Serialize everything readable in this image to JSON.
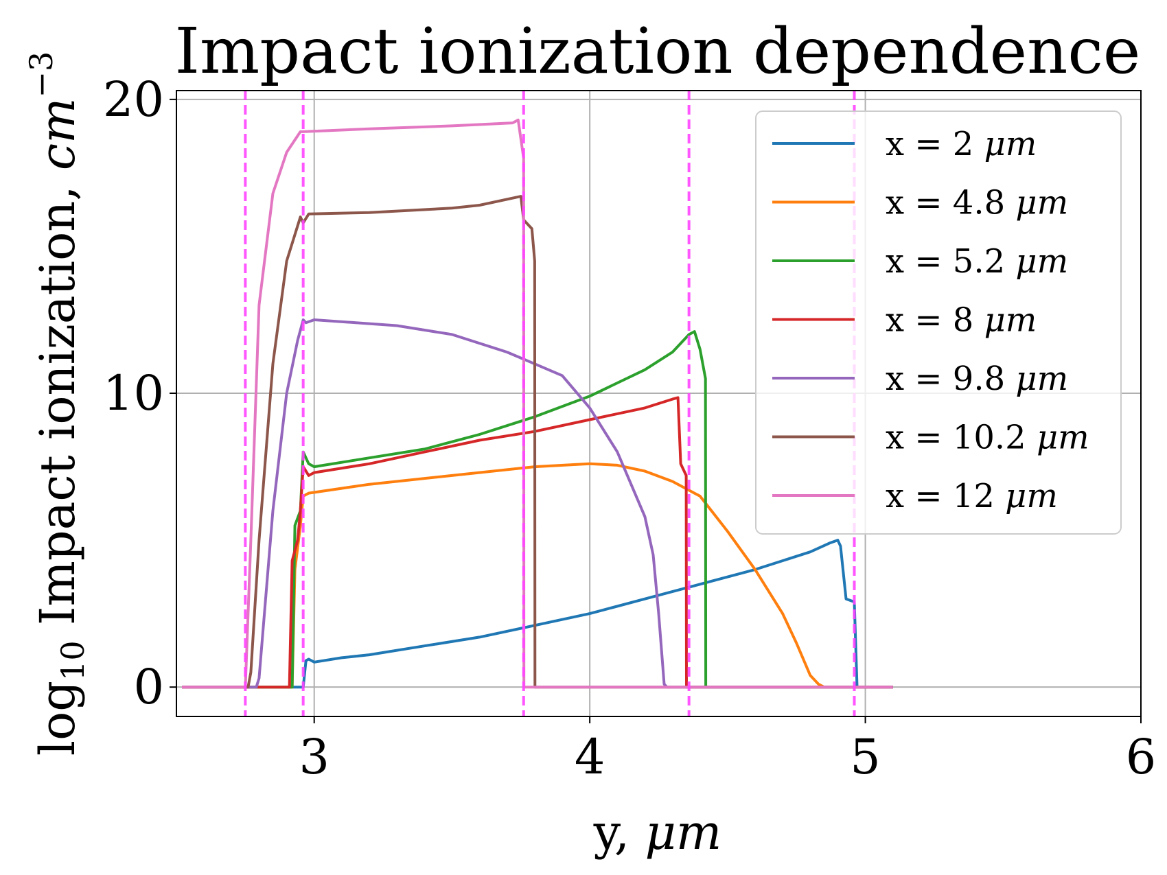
{
  "chart_data": {
    "type": "line",
    "title": "Impact ionization dependence",
    "xlabel": {
      "text": "y, ",
      "unit": "μm"
    },
    "ylabel": {
      "prefix": "log",
      "sub": "10",
      "text": " Impact ionization, ",
      "unit": "cm",
      "sup": "−3"
    },
    "xlim": [
      2.5,
      6
    ],
    "ylim": [
      -1,
      20.3
    ],
    "xticks": [
      3,
      4,
      5,
      6
    ],
    "xtick_labels": [
      "3",
      "4",
      "5",
      "6"
    ],
    "yticks": [
      0,
      10,
      20
    ],
    "ytick_labels": [
      "0",
      "10",
      "20"
    ],
    "grid": true,
    "legend_position": "top-right",
    "vlines": {
      "x": [
        2.75,
        2.96,
        3.76,
        4.36,
        4.96
      ],
      "color": "#ff44ff",
      "style": "dashed"
    },
    "series": [
      {
        "name": "x = 2 ",
        "unit": "μm",
        "color": "#1f77b4",
        "points": [
          [
            2.52,
            0
          ],
          [
            2.96,
            0
          ],
          [
            2.97,
            0.9
          ],
          [
            2.98,
            0.95
          ],
          [
            3.0,
            0.85
          ],
          [
            3.1,
            1.0
          ],
          [
            3.2,
            1.1
          ],
          [
            3.4,
            1.4
          ],
          [
            3.6,
            1.7
          ],
          [
            3.8,
            2.1
          ],
          [
            4.0,
            2.5
          ],
          [
            4.2,
            3.0
          ],
          [
            4.4,
            3.5
          ],
          [
            4.6,
            4.0
          ],
          [
            4.8,
            4.6
          ],
          [
            4.87,
            4.9
          ],
          [
            4.9,
            5.0
          ],
          [
            4.91,
            4.8
          ],
          [
            4.93,
            3.0
          ],
          [
            4.96,
            2.9
          ],
          [
            4.97,
            0
          ],
          [
            5.1,
            0
          ]
        ]
      },
      {
        "name": "x = 4.8 ",
        "unit": "μm",
        "color": "#ff7f0e",
        "points": [
          [
            2.52,
            0
          ],
          [
            2.92,
            0
          ],
          [
            2.93,
            4.0
          ],
          [
            2.95,
            5.5
          ],
          [
            2.96,
            6.5
          ],
          [
            2.98,
            6.6
          ],
          [
            3.2,
            6.9
          ],
          [
            3.5,
            7.2
          ],
          [
            3.8,
            7.5
          ],
          [
            4.0,
            7.6
          ],
          [
            4.1,
            7.55
          ],
          [
            4.2,
            7.35
          ],
          [
            4.3,
            7.0
          ],
          [
            4.4,
            6.5
          ],
          [
            4.5,
            5.3
          ],
          [
            4.6,
            4.0
          ],
          [
            4.7,
            2.5
          ],
          [
            4.75,
            1.5
          ],
          [
            4.8,
            0.4
          ],
          [
            4.83,
            0.1
          ],
          [
            4.85,
            0
          ],
          [
            5.1,
            0
          ]
        ]
      },
      {
        "name": "x = 5.2 ",
        "unit": "μm",
        "color": "#2ca02c",
        "points": [
          [
            2.52,
            0
          ],
          [
            2.92,
            0
          ],
          [
            2.93,
            5.5
          ],
          [
            2.95,
            6.0
          ],
          [
            2.96,
            8.0
          ],
          [
            2.98,
            7.6
          ],
          [
            3.0,
            7.5
          ],
          [
            3.2,
            7.8
          ],
          [
            3.4,
            8.1
          ],
          [
            3.6,
            8.6
          ],
          [
            3.8,
            9.2
          ],
          [
            4.0,
            9.9
          ],
          [
            4.2,
            10.8
          ],
          [
            4.3,
            11.4
          ],
          [
            4.36,
            12.0
          ],
          [
            4.38,
            12.1
          ],
          [
            4.4,
            11.5
          ],
          [
            4.42,
            10.5
          ],
          [
            4.421,
            0
          ],
          [
            5.1,
            0
          ]
        ]
      },
      {
        "name": "x = 8 ",
        "unit": "μm",
        "color": "#d62728",
        "points": [
          [
            2.52,
            0
          ],
          [
            2.91,
            0
          ],
          [
            2.92,
            4.3
          ],
          [
            2.94,
            5.0
          ],
          [
            2.95,
            6.0
          ],
          [
            2.96,
            7.5
          ],
          [
            2.98,
            7.2
          ],
          [
            3.0,
            7.3
          ],
          [
            3.2,
            7.6
          ],
          [
            3.4,
            8.0
          ],
          [
            3.6,
            8.4
          ],
          [
            3.8,
            8.7
          ],
          [
            4.0,
            9.1
          ],
          [
            4.2,
            9.5
          ],
          [
            4.3,
            9.8
          ],
          [
            4.32,
            9.85
          ],
          [
            4.33,
            7.6
          ],
          [
            4.35,
            7.2
          ],
          [
            4.351,
            0
          ],
          [
            5.1,
            0
          ]
        ]
      },
      {
        "name": "x = 9.8 ",
        "unit": "μm",
        "color": "#9467bd",
        "points": [
          [
            2.52,
            0
          ],
          [
            2.79,
            0
          ],
          [
            2.8,
            0.3
          ],
          [
            2.85,
            6.0
          ],
          [
            2.9,
            10.0
          ],
          [
            2.94,
            11.8
          ],
          [
            2.96,
            12.5
          ],
          [
            2.97,
            12.4
          ],
          [
            3.0,
            12.5
          ],
          [
            3.3,
            12.3
          ],
          [
            3.5,
            12.0
          ],
          [
            3.7,
            11.4
          ],
          [
            3.8,
            11.0
          ],
          [
            3.9,
            10.6
          ],
          [
            4.0,
            9.5
          ],
          [
            4.1,
            8.0
          ],
          [
            4.2,
            5.8
          ],
          [
            4.23,
            4.5
          ],
          [
            4.25,
            2.5
          ],
          [
            4.27,
            0.1
          ],
          [
            4.28,
            0
          ],
          [
            5.1,
            0
          ]
        ]
      },
      {
        "name": "x = 10.2 ",
        "unit": "μm",
        "color": "#8c564b",
        "points": [
          [
            2.52,
            0
          ],
          [
            2.76,
            0
          ],
          [
            2.77,
            0.5
          ],
          [
            2.8,
            5.0
          ],
          [
            2.85,
            11.0
          ],
          [
            2.9,
            14.5
          ],
          [
            2.95,
            16.0
          ],
          [
            2.96,
            15.8
          ],
          [
            2.98,
            16.1
          ],
          [
            3.2,
            16.15
          ],
          [
            3.5,
            16.3
          ],
          [
            3.6,
            16.4
          ],
          [
            3.75,
            16.7
          ],
          [
            3.76,
            15.9
          ],
          [
            3.79,
            15.6
          ],
          [
            3.8,
            14.5
          ],
          [
            3.801,
            0
          ],
          [
            5.1,
            0
          ]
        ]
      },
      {
        "name": "x = 12 ",
        "unit": "μm",
        "color": "#e377c2",
        "points": [
          [
            2.52,
            0
          ],
          [
            2.75,
            0
          ],
          [
            2.77,
            5.0
          ],
          [
            2.8,
            13.0
          ],
          [
            2.85,
            16.8
          ],
          [
            2.9,
            18.2
          ],
          [
            2.95,
            18.9
          ],
          [
            2.96,
            18.9
          ],
          [
            3.2,
            19.0
          ],
          [
            3.5,
            19.1
          ],
          [
            3.72,
            19.2
          ],
          [
            3.74,
            19.3
          ],
          [
            3.76,
            18.0
          ],
          [
            3.761,
            0
          ],
          [
            5.1,
            0
          ]
        ]
      }
    ]
  }
}
